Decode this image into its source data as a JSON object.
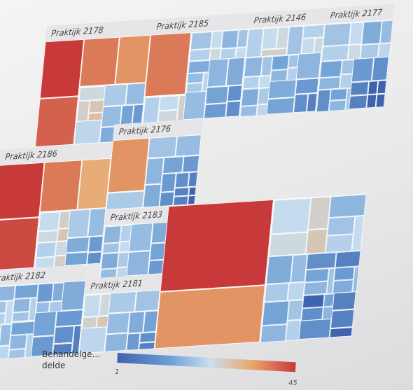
{
  "chart_data": {
    "type": "heatmap",
    "subtype": "treemap",
    "color_metric": "Behandelgedelde",
    "color_scale": {
      "min": 1,
      "max": 45,
      "colors": [
        "#3f63ae",
        "#c9dff0",
        "#c8393a"
      ]
    },
    "legend": {
      "title": "Behandelge... delde",
      "min_label": "1",
      "max_label": "45",
      "placement": "bottom"
    },
    "groups": [
      {
        "name": "Praktijk 2178",
        "values": [
          45,
          38,
          34,
          30,
          18,
          12,
          10,
          8,
          8,
          6,
          5,
          4,
          4,
          3
        ]
      },
      {
        "name": "Praktijk 2185",
        "values": [
          34,
          14,
          12,
          10,
          9,
          8,
          7,
          6,
          5,
          4,
          3,
          3
        ]
      },
      {
        "name": "Praktijk 2146",
        "values": [
          14,
          12,
          10,
          9,
          8,
          7,
          6,
          5,
          4,
          3,
          2
        ]
      },
      {
        "name": "Praktijk 2177",
        "values": [
          12,
          9,
          8,
          6,
          4,
          3,
          2,
          2,
          1,
          1,
          1,
          1
        ]
      },
      {
        "name": "Praktijk 2186",
        "values": [
          45,
          42,
          34,
          26,
          16,
          14,
          10,
          8,
          6,
          5,
          4,
          3
        ]
      },
      {
        "name": "Praktijk 2176",
        "values": [
          30,
          10,
          9,
          8,
          7,
          6,
          5,
          4,
          4,
          3,
          3,
          2,
          2,
          2,
          1,
          1
        ]
      },
      {
        "name": "Praktijk 2183",
        "values": [
          10,
          9,
          8,
          7,
          6,
          5,
          5,
          4,
          3,
          2,
          2,
          1
        ]
      },
      {
        "name": "Praktijk 2182",
        "values": [
          10,
          9,
          8,
          8,
          7,
          6,
          5,
          4,
          4,
          3,
          2,
          2
        ]
      },
      {
        "name": "Praktijk 2181",
        "values": [
          16,
          12,
          10,
          9,
          8,
          7,
          6,
          5,
          4,
          3,
          2
        ]
      },
      {
        "name": "",
        "values": [
          45,
          30,
          16,
          10,
          9,
          8,
          6,
          5,
          4,
          3,
          2,
          2,
          1
        ]
      }
    ]
  }
}
